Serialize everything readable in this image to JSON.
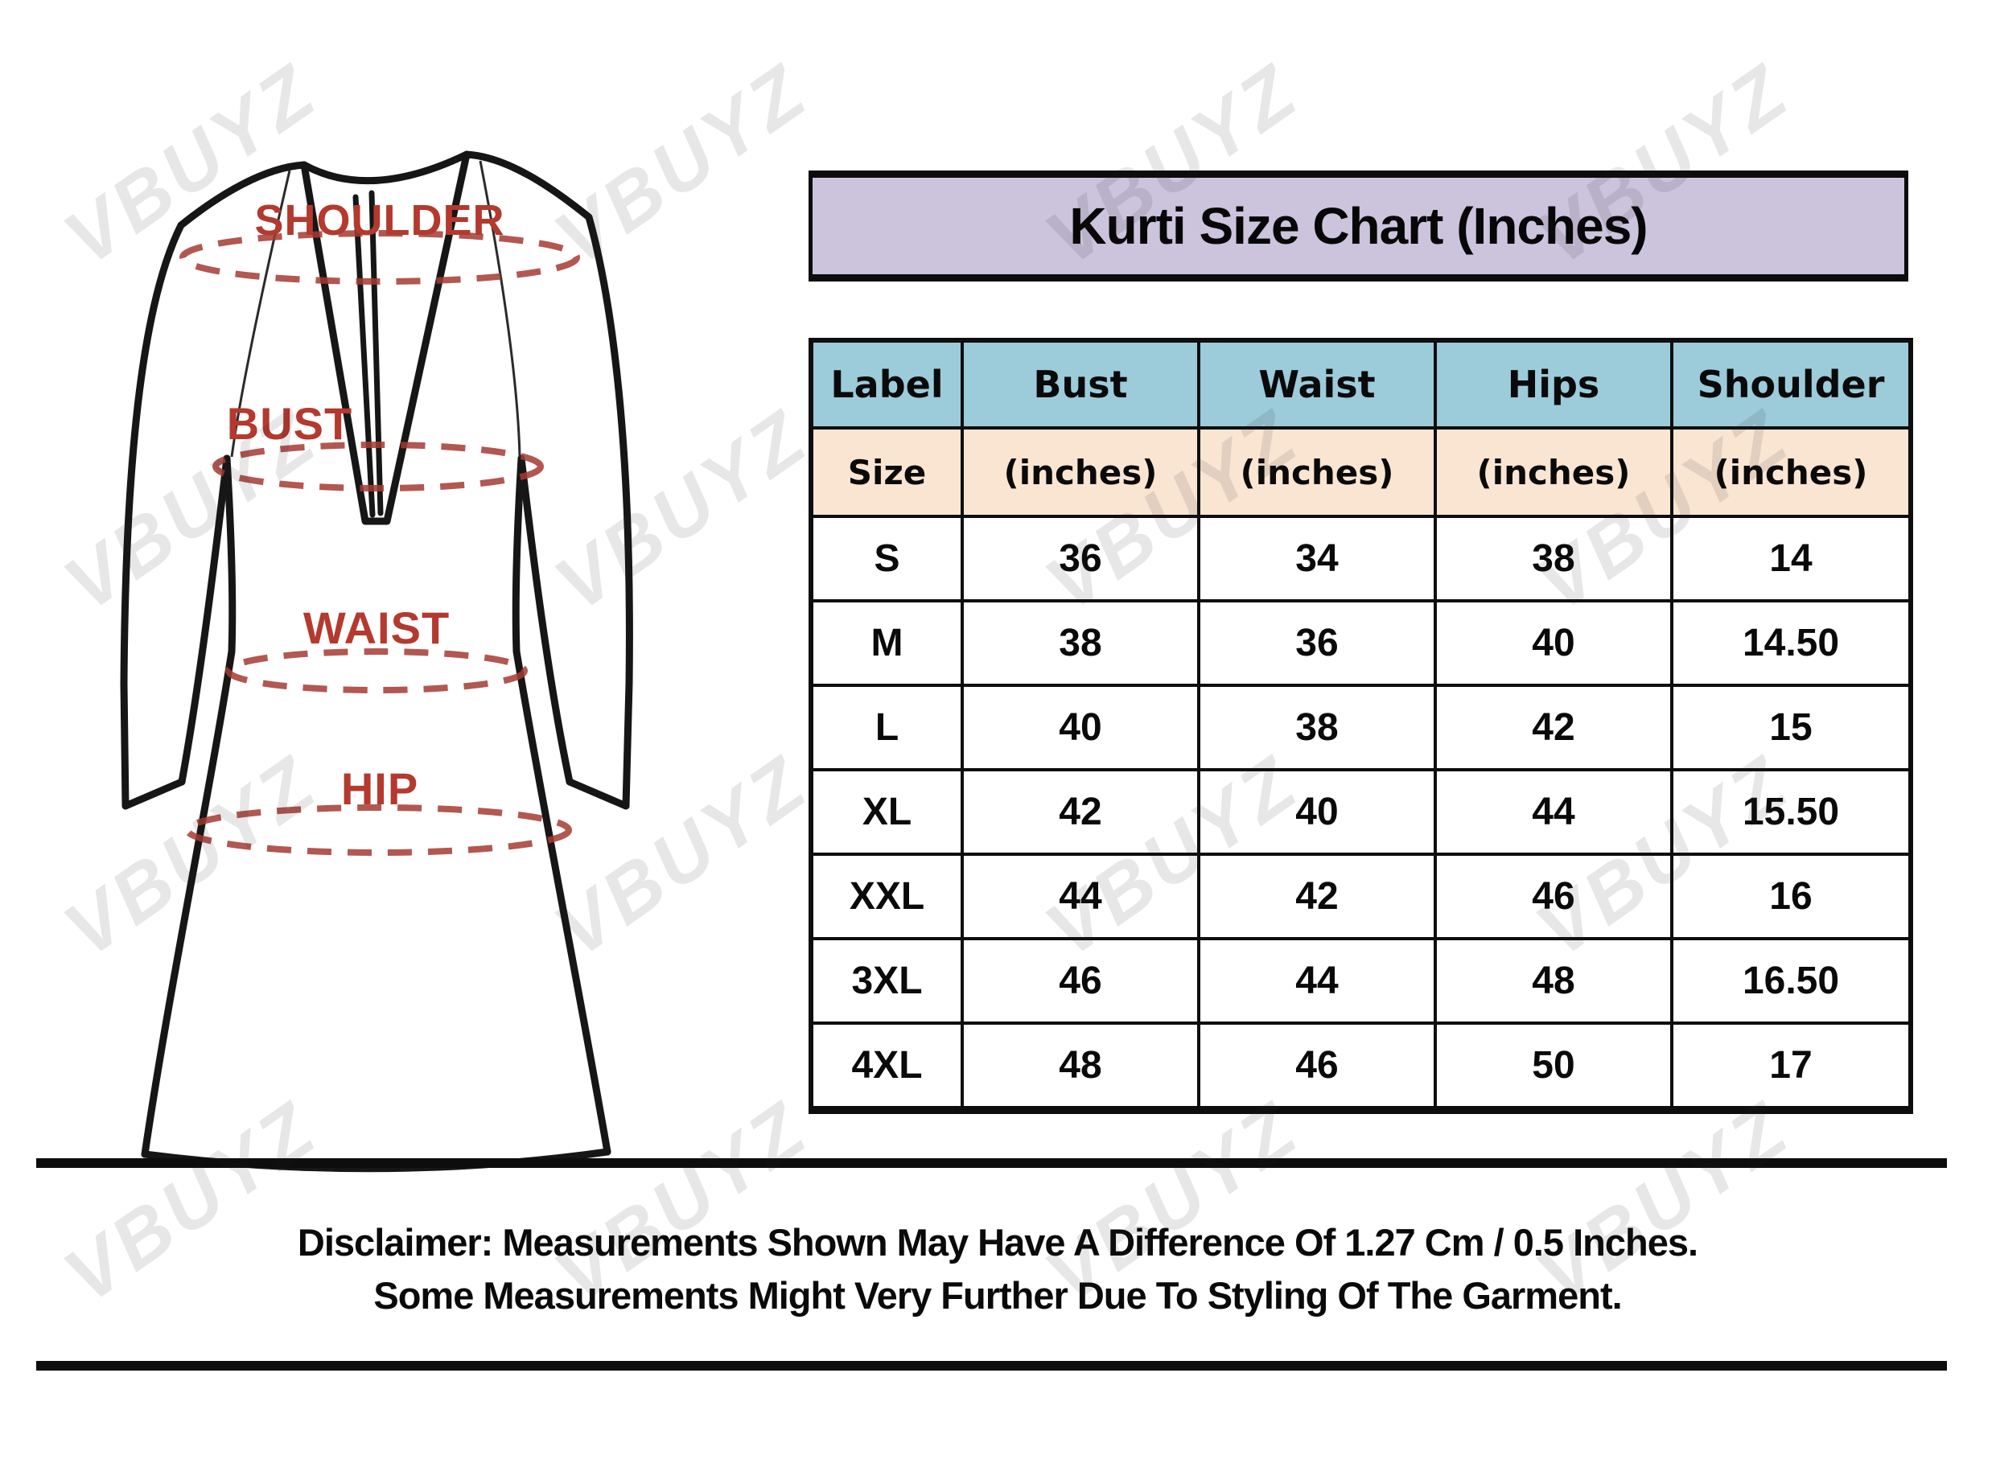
{
  "title": "Kurti Size Chart (Inches)",
  "watermark": {
    "text": "VBUYZ"
  },
  "diagram": {
    "labels": {
      "shoulder": "SHOULDER",
      "bust": "BUST",
      "waist": "WAIST",
      "hip": "HIP"
    }
  },
  "size_chart": {
    "columns": [
      "Label",
      "Bust",
      "Waist",
      "Hips",
      "Shoulder"
    ],
    "subheader": [
      "Size",
      "(inches)",
      "(inches)",
      "(inches)",
      "(inches)"
    ],
    "rows": [
      [
        "S",
        "36",
        "34",
        "38",
        "14"
      ],
      [
        "M",
        "38",
        "36",
        "40",
        "14.50"
      ],
      [
        "L",
        "40",
        "38",
        "42",
        "15"
      ],
      [
        "XL",
        "42",
        "40",
        "44",
        "15.50"
      ],
      [
        "XXL",
        "44",
        "42",
        "46",
        "16"
      ],
      [
        "3XL",
        "46",
        "44",
        "48",
        "16.50"
      ],
      [
        "4XL",
        "48",
        "46",
        "50",
        "17"
      ]
    ]
  },
  "disclaimer": {
    "line1": "Disclaimer: Measurements Shown May Have A Difference Of 1.27 Cm / 0.5 Inches.",
    "line2": "Some Measurements Might Very Further Due To Styling Of The Garment."
  },
  "colors": {
    "title_bg": "#ccc3dd",
    "header_bg": "#9ccbda",
    "subheader_bg": "#fae5d2",
    "label_red": "#b4392e",
    "dash_red": "#a63a32",
    "border_black": "#0d0d0d"
  },
  "chart_data": {
    "type": "table",
    "title": "Kurti Size Chart (Inches)",
    "columns": [
      "Label / Size",
      "Bust (inches)",
      "Waist (inches)",
      "Hips (inches)",
      "Shoulder (inches)"
    ],
    "rows": [
      {
        "size": "S",
        "bust": 36,
        "waist": 34,
        "hips": 38,
        "shoulder": 14
      },
      {
        "size": "M",
        "bust": 38,
        "waist": 36,
        "hips": 40,
        "shoulder": 14.5
      },
      {
        "size": "L",
        "bust": 40,
        "waist": 38,
        "hips": 42,
        "shoulder": 15
      },
      {
        "size": "XL",
        "bust": 42,
        "waist": 40,
        "hips": 44,
        "shoulder": 15.5
      },
      {
        "size": "XXL",
        "bust": 44,
        "waist": 42,
        "hips": 46,
        "shoulder": 16
      },
      {
        "size": "3XL",
        "bust": 46,
        "waist": 44,
        "hips": 48,
        "shoulder": 16.5
      },
      {
        "size": "4XL",
        "bust": 48,
        "waist": 46,
        "hips": 50,
        "shoulder": 17
      }
    ]
  }
}
